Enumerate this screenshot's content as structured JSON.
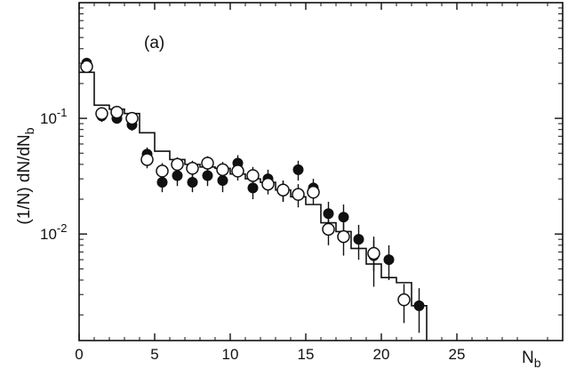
{
  "chart_data": {
    "type": "scatter",
    "title": "",
    "panel_label": "(a)",
    "xlabel": {
      "main": "N",
      "sub": "b"
    },
    "ylabel": {
      "pre": "(1/N) dN/dN",
      "sub": "b"
    },
    "x_scale": "linear",
    "y_scale": "log",
    "xlim": [
      0,
      32
    ],
    "ylim": [
      0.0012,
      1.0
    ],
    "x_ticks": [
      {
        "value": 0,
        "label": "0"
      },
      {
        "value": 5,
        "label": "5"
      },
      {
        "value": 10,
        "label": "10"
      },
      {
        "value": 15,
        "label": "15"
      },
      {
        "value": 20,
        "label": "20"
      },
      {
        "value": 25,
        "label": "25"
      }
    ],
    "y_ticks": [
      {
        "value": 0.1,
        "base": "10",
        "exp": "-1"
      },
      {
        "value": 0.01,
        "base": "10",
        "exp": "-2"
      }
    ],
    "grid": false,
    "series": [
      {
        "marker": "filled-circle",
        "points": [
          {
            "x": 0.5,
            "y": 0.3,
            "err": 0.02
          },
          {
            "x": 1.5,
            "y": 0.105,
            "err": 0.012
          },
          {
            "x": 2.5,
            "y": 0.1,
            "err": 0.01
          },
          {
            "x": 3.5,
            "y": 0.088,
            "err": 0.01
          },
          {
            "x": 4.5,
            "y": 0.049,
            "err": 0.007
          },
          {
            "x": 5.5,
            "y": 0.028,
            "err": 0.005
          },
          {
            "x": 6.5,
            "y": 0.032,
            "err": 0.006
          },
          {
            "x": 7.5,
            "y": 0.028,
            "err": 0.005
          },
          {
            "x": 8.5,
            "y": 0.032,
            "err": 0.006
          },
          {
            "x": 9.5,
            "y": 0.029,
            "err": 0.006
          },
          {
            "x": 10.5,
            "y": 0.041,
            "err": 0.007
          },
          {
            "x": 11.5,
            "y": 0.025,
            "err": 0.005
          },
          {
            "x": 12.5,
            "y": 0.03,
            "err": 0.006
          },
          {
            "x": 13.5,
            "y": 0.024,
            "err": 0.005
          },
          {
            "x": 14.5,
            "y": 0.036,
            "err": 0.007
          },
          {
            "x": 15.5,
            "y": 0.025,
            "err": 0.005
          },
          {
            "x": 16.5,
            "y": 0.015,
            "err": 0.004
          },
          {
            "x": 17.5,
            "y": 0.014,
            "err": 0.004
          },
          {
            "x": 18.5,
            "y": 0.009,
            "err": 0.003
          },
          {
            "x": 19.5,
            "y": 0.0065,
            "err": 0.003
          },
          {
            "x": 20.5,
            "y": 0.006,
            "err": 0.002
          },
          {
            "x": 22.5,
            "y": 0.0024,
            "err": 0.001
          }
        ]
      },
      {
        "marker": "open-circle",
        "points": [
          {
            "x": 0.5,
            "y": 0.28,
            "err": 0.03
          },
          {
            "x": 1.5,
            "y": 0.11,
            "err": 0.012
          },
          {
            "x": 2.5,
            "y": 0.113,
            "err": 0.012
          },
          {
            "x": 3.5,
            "y": 0.1,
            "err": 0.01
          },
          {
            "x": 4.5,
            "y": 0.044,
            "err": 0.007
          },
          {
            "x": 5.5,
            "y": 0.035,
            "err": 0.006
          },
          {
            "x": 6.5,
            "y": 0.04,
            "err": 0.006
          },
          {
            "x": 7.5,
            "y": 0.037,
            "err": 0.006
          },
          {
            "x": 8.5,
            "y": 0.041,
            "err": 0.006
          },
          {
            "x": 9.5,
            "y": 0.036,
            "err": 0.006
          },
          {
            "x": 10.5,
            "y": 0.035,
            "err": 0.006
          },
          {
            "x": 11.5,
            "y": 0.032,
            "err": 0.006
          },
          {
            "x": 12.5,
            "y": 0.027,
            "err": 0.005
          },
          {
            "x": 13.5,
            "y": 0.024,
            "err": 0.005
          },
          {
            "x": 14.5,
            "y": 0.022,
            "err": 0.005
          },
          {
            "x": 15.5,
            "y": 0.023,
            "err": 0.005
          },
          {
            "x": 16.5,
            "y": 0.011,
            "err": 0.003
          },
          {
            "x": 17.5,
            "y": 0.0095,
            "err": 0.003
          },
          {
            "x": 19.5,
            "y": 0.0068,
            "err": 0.002
          },
          {
            "x": 21.5,
            "y": 0.0027,
            "err": 0.001
          }
        ]
      }
    ],
    "histogram": {
      "edges": [
        0,
        1,
        2,
        3,
        4,
        5,
        6,
        7,
        8,
        9,
        10,
        11,
        12,
        13,
        14,
        15,
        16,
        17,
        18,
        19,
        20,
        21,
        22,
        23
      ],
      "values": [
        0.25,
        0.13,
        0.12,
        0.11,
        0.075,
        0.052,
        0.044,
        0.04,
        0.038,
        0.037,
        0.033,
        0.03,
        0.028,
        0.024,
        0.021,
        0.018,
        0.0125,
        0.0105,
        0.0075,
        0.0055,
        0.0042,
        0.0038,
        0.0024
      ]
    }
  }
}
